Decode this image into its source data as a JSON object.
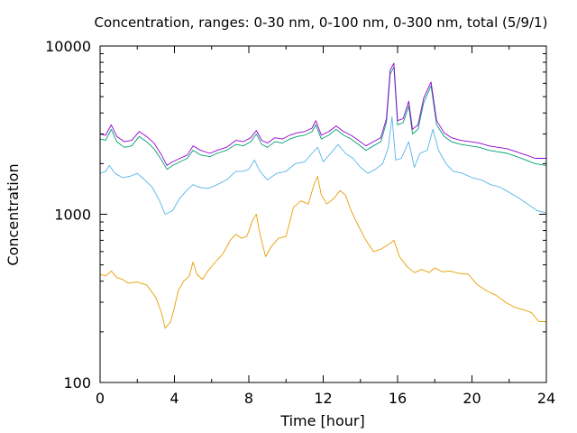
{
  "chart_data": {
    "type": "line",
    "title": "Concentration, ranges: 0-30 nm, 0-100 nm, 0-300 nm, total (5/9/1)",
    "xlabel": "Time [hour]",
    "ylabel": "Concentration",
    "xlim": [
      0,
      24
    ],
    "ylim": [
      100,
      10000
    ],
    "yscale": "log",
    "grid": false,
    "legend": "none",
    "x_ticks": [
      "0",
      "4",
      "8",
      "12",
      "16",
      "20",
      "24"
    ],
    "y_ticks": [
      "100",
      "1000",
      "10000"
    ],
    "series": [
      {
        "color": "#e69f00",
        "points": [
          [
            0,
            440
          ],
          [
            0.3,
            430
          ],
          [
            0.6,
            460
          ],
          [
            0.9,
            420
          ],
          [
            1.2,
            410
          ],
          [
            1.5,
            390
          ],
          [
            2.0,
            395
          ],
          [
            2.5,
            380
          ],
          [
            3.0,
            320
          ],
          [
            3.3,
            260
          ],
          [
            3.5,
            210
          ],
          [
            3.8,
            230
          ],
          [
            4.0,
            280
          ],
          [
            4.2,
            350
          ],
          [
            4.5,
            400
          ],
          [
            4.8,
            430
          ],
          [
            5.0,
            520
          ],
          [
            5.2,
            440
          ],
          [
            5.5,
            410
          ],
          [
            5.8,
            460
          ],
          [
            6.2,
            520
          ],
          [
            6.6,
            580
          ],
          [
            7.0,
            700
          ],
          [
            7.3,
            760
          ],
          [
            7.6,
            720
          ],
          [
            7.9,
            740
          ],
          [
            8.2,
            920
          ],
          [
            8.4,
            1000
          ],
          [
            8.6,
            760
          ],
          [
            8.9,
            560
          ],
          [
            9.2,
            640
          ],
          [
            9.6,
            720
          ],
          [
            10.0,
            740
          ],
          [
            10.4,
            1100
          ],
          [
            10.8,
            1200
          ],
          [
            11.2,
            1150
          ],
          [
            11.5,
            1500
          ],
          [
            11.7,
            1680
          ],
          [
            11.9,
            1300
          ],
          [
            12.2,
            1150
          ],
          [
            12.6,
            1250
          ],
          [
            12.9,
            1380
          ],
          [
            13.2,
            1300
          ],
          [
            13.5,
            1050
          ],
          [
            13.9,
            850
          ],
          [
            14.3,
            700
          ],
          [
            14.7,
            600
          ],
          [
            15.1,
            620
          ],
          [
            15.5,
            660
          ],
          [
            15.8,
            700
          ],
          [
            16.1,
            560
          ],
          [
            16.5,
            490
          ],
          [
            16.9,
            450
          ],
          [
            17.3,
            470
          ],
          [
            17.7,
            450
          ],
          [
            18.0,
            480
          ],
          [
            18.4,
            455
          ],
          [
            18.8,
            460
          ],
          [
            19.3,
            445
          ],
          [
            19.8,
            440
          ],
          [
            20.3,
            380
          ],
          [
            20.8,
            350
          ],
          [
            21.3,
            330
          ],
          [
            21.8,
            300
          ],
          [
            22.3,
            280
          ],
          [
            22.8,
            270
          ],
          [
            23.2,
            260
          ],
          [
            23.6,
            230
          ],
          [
            24.0,
            230
          ]
        ]
      },
      {
        "color": "#56b4e9",
        "points": [
          [
            0,
            1750
          ],
          [
            0.3,
            1800
          ],
          [
            0.5,
            1950
          ],
          [
            0.8,
            1750
          ],
          [
            1.2,
            1650
          ],
          [
            1.6,
            1680
          ],
          [
            2.0,
            1750
          ],
          [
            2.4,
            1600
          ],
          [
            2.8,
            1450
          ],
          [
            3.2,
            1200
          ],
          [
            3.5,
            1000
          ],
          [
            3.9,
            1050
          ],
          [
            4.3,
            1250
          ],
          [
            4.7,
            1400
          ],
          [
            5.0,
            1500
          ],
          [
            5.3,
            1450
          ],
          [
            5.8,
            1420
          ],
          [
            6.3,
            1500
          ],
          [
            6.8,
            1600
          ],
          [
            7.3,
            1800
          ],
          [
            7.7,
            1800
          ],
          [
            8.0,
            1850
          ],
          [
            8.3,
            2100
          ],
          [
            8.6,
            1800
          ],
          [
            9.0,
            1600
          ],
          [
            9.5,
            1750
          ],
          [
            10.0,
            1800
          ],
          [
            10.5,
            2000
          ],
          [
            11.0,
            2050
          ],
          [
            11.4,
            2300
          ],
          [
            11.7,
            2500
          ],
          [
            12.0,
            2050
          ],
          [
            12.4,
            2300
          ],
          [
            12.8,
            2600
          ],
          [
            13.2,
            2300
          ],
          [
            13.6,
            2150
          ],
          [
            14.0,
            1900
          ],
          [
            14.4,
            1750
          ],
          [
            14.8,
            1850
          ],
          [
            15.2,
            2000
          ],
          [
            15.5,
            2500
          ],
          [
            15.7,
            3800
          ],
          [
            15.9,
            2100
          ],
          [
            16.2,
            2150
          ],
          [
            16.6,
            2700
          ],
          [
            16.9,
            1900
          ],
          [
            17.2,
            2300
          ],
          [
            17.6,
            2400
          ],
          [
            17.9,
            3200
          ],
          [
            18.2,
            2400
          ],
          [
            18.6,
            2000
          ],
          [
            19.0,
            1800
          ],
          [
            19.5,
            1750
          ],
          [
            20.0,
            1650
          ],
          [
            20.5,
            1600
          ],
          [
            21.0,
            1500
          ],
          [
            21.5,
            1450
          ],
          [
            22.0,
            1350
          ],
          [
            22.5,
            1250
          ],
          [
            23.0,
            1150
          ],
          [
            23.5,
            1050
          ],
          [
            24.0,
            1020
          ]
        ]
      },
      {
        "color": "#009e73",
        "points": [
          [
            0,
            2800
          ],
          [
            0.3,
            2750
          ],
          [
            0.6,
            3200
          ],
          [
            0.9,
            2700
          ],
          [
            1.3,
            2500
          ],
          [
            1.7,
            2550
          ],
          [
            2.1,
            2900
          ],
          [
            2.5,
            2700
          ],
          [
            2.9,
            2450
          ],
          [
            3.3,
            2100
          ],
          [
            3.6,
            1850
          ],
          [
            3.9,
            1950
          ],
          [
            4.3,
            2050
          ],
          [
            4.7,
            2150
          ],
          [
            5.0,
            2400
          ],
          [
            5.4,
            2250
          ],
          [
            5.9,
            2200
          ],
          [
            6.3,
            2300
          ],
          [
            6.8,
            2400
          ],
          [
            7.3,
            2600
          ],
          [
            7.7,
            2550
          ],
          [
            8.1,
            2700
          ],
          [
            8.4,
            3000
          ],
          [
            8.7,
            2600
          ],
          [
            9.0,
            2500
          ],
          [
            9.4,
            2700
          ],
          [
            9.8,
            2650
          ],
          [
            10.2,
            2800
          ],
          [
            10.6,
            2900
          ],
          [
            11.0,
            2950
          ],
          [
            11.4,
            3100
          ],
          [
            11.6,
            3400
          ],
          [
            11.9,
            2800
          ],
          [
            12.3,
            2950
          ],
          [
            12.7,
            3200
          ],
          [
            13.1,
            2950
          ],
          [
            13.5,
            2800
          ],
          [
            13.9,
            2600
          ],
          [
            14.3,
            2400
          ],
          [
            14.7,
            2550
          ],
          [
            15.1,
            2700
          ],
          [
            15.4,
            3500
          ],
          [
            15.6,
            6800
          ],
          [
            15.8,
            7500
          ],
          [
            16.0,
            3400
          ],
          [
            16.3,
            3500
          ],
          [
            16.6,
            4400
          ],
          [
            16.8,
            3000
          ],
          [
            17.1,
            3200
          ],
          [
            17.4,
            4600
          ],
          [
            17.8,
            5800
          ],
          [
            18.1,
            3400
          ],
          [
            18.5,
            2900
          ],
          [
            18.9,
            2700
          ],
          [
            19.4,
            2600
          ],
          [
            19.9,
            2550
          ],
          [
            20.4,
            2500
          ],
          [
            20.9,
            2400
          ],
          [
            21.4,
            2350
          ],
          [
            21.9,
            2300
          ],
          [
            22.4,
            2200
          ],
          [
            22.9,
            2100
          ],
          [
            23.4,
            2000
          ],
          [
            24.0,
            1950
          ]
        ]
      },
      {
        "color": "#9400d3",
        "points": [
          [
            0,
            3000
          ],
          [
            0.3,
            2950
          ],
          [
            0.6,
            3400
          ],
          [
            0.9,
            2900
          ],
          [
            1.3,
            2700
          ],
          [
            1.7,
            2750
          ],
          [
            2.1,
            3100
          ],
          [
            2.5,
            2900
          ],
          [
            2.9,
            2650
          ],
          [
            3.3,
            2250
          ],
          [
            3.6,
            1950
          ],
          [
            3.9,
            2050
          ],
          [
            4.3,
            2150
          ],
          [
            4.7,
            2250
          ],
          [
            5.0,
            2550
          ],
          [
            5.4,
            2400
          ],
          [
            5.9,
            2300
          ],
          [
            6.3,
            2400
          ],
          [
            6.8,
            2500
          ],
          [
            7.3,
            2750
          ],
          [
            7.7,
            2700
          ],
          [
            8.1,
            2850
          ],
          [
            8.4,
            3150
          ],
          [
            8.7,
            2750
          ],
          [
            9.0,
            2650
          ],
          [
            9.4,
            2850
          ],
          [
            9.8,
            2800
          ],
          [
            10.2,
            2950
          ],
          [
            10.6,
            3050
          ],
          [
            11.0,
            3100
          ],
          [
            11.4,
            3250
          ],
          [
            11.6,
            3600
          ],
          [
            11.9,
            2950
          ],
          [
            12.3,
            3100
          ],
          [
            12.7,
            3350
          ],
          [
            13.1,
            3100
          ],
          [
            13.5,
            2950
          ],
          [
            13.9,
            2750
          ],
          [
            14.3,
            2550
          ],
          [
            14.7,
            2700
          ],
          [
            15.1,
            2850
          ],
          [
            15.4,
            3700
          ],
          [
            15.6,
            7200
          ],
          [
            15.8,
            7900
          ],
          [
            16.0,
            3600
          ],
          [
            16.3,
            3700
          ],
          [
            16.6,
            4700
          ],
          [
            16.8,
            3200
          ],
          [
            17.1,
            3400
          ],
          [
            17.4,
            4900
          ],
          [
            17.8,
            6100
          ],
          [
            18.1,
            3600
          ],
          [
            18.5,
            3050
          ],
          [
            18.9,
            2850
          ],
          [
            19.4,
            2750
          ],
          [
            19.9,
            2700
          ],
          [
            20.4,
            2650
          ],
          [
            20.9,
            2550
          ],
          [
            21.4,
            2500
          ],
          [
            21.9,
            2450
          ],
          [
            22.4,
            2350
          ],
          [
            22.9,
            2250
          ],
          [
            23.4,
            2150
          ],
          [
            24.0,
            2150
          ]
        ]
      }
    ]
  }
}
